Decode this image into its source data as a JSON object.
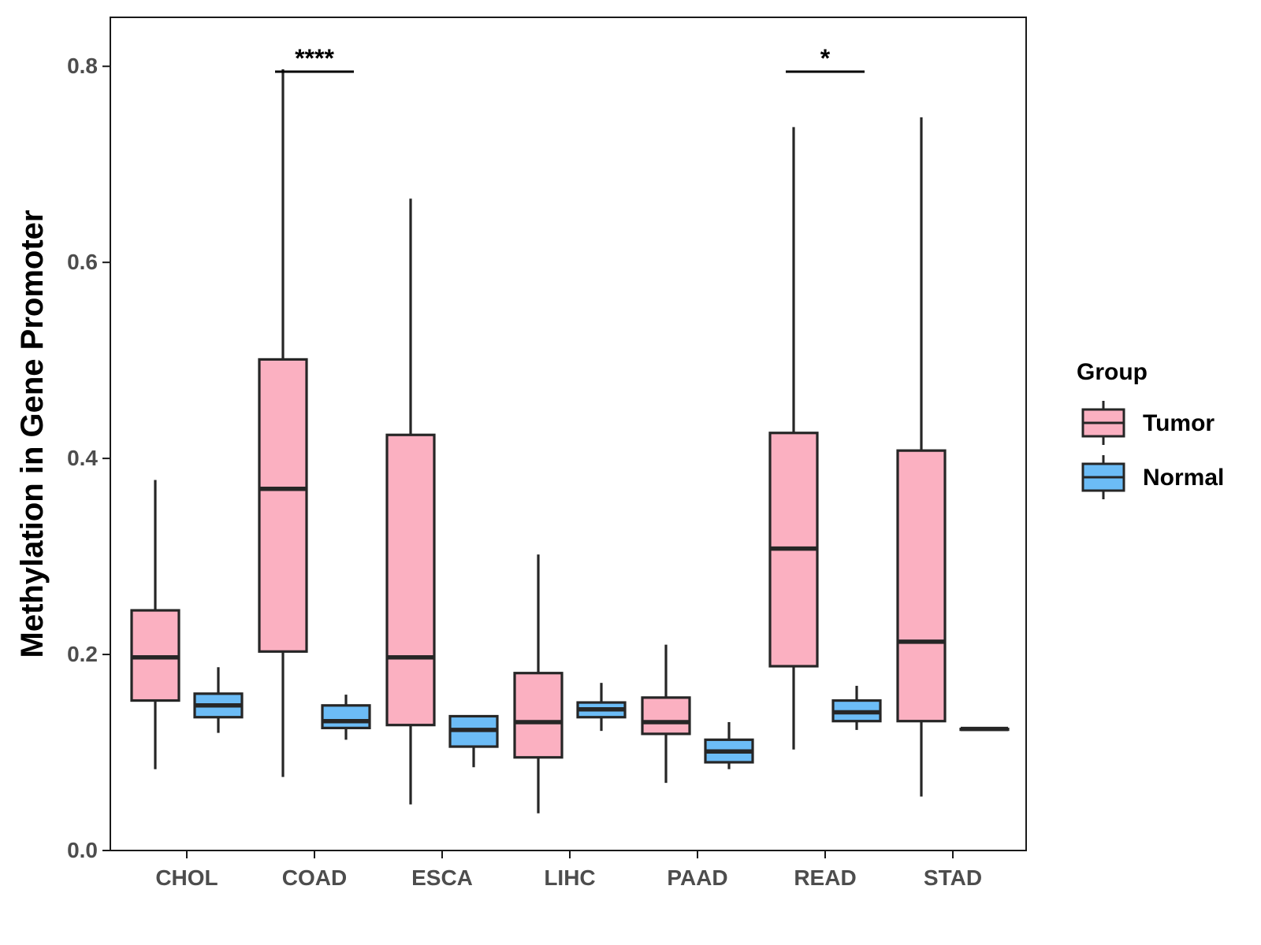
{
  "chart_data": {
    "type": "boxplot",
    "title": "",
    "xlabel": "",
    "ylabel": "Methylation in Gene Promoter",
    "ylim": [
      0,
      0.85
    ],
    "y_ticks": [
      "0.0",
      "0.2",
      "0.4",
      "0.6",
      "0.8"
    ],
    "y_tick_values": [
      0,
      0.2,
      0.4,
      0.6,
      0.8
    ],
    "categories": [
      "CHOL",
      "COAD",
      "ESCA",
      "LIHC",
      "PAAD",
      "READ",
      "STAD"
    ],
    "legend": {
      "title": "Group",
      "position": "right",
      "entries": [
        {
          "label": "Tumor",
          "color": "#fbb0c1"
        },
        {
          "label": "Normal",
          "color": "#6cbcf6"
        }
      ]
    },
    "series": [
      {
        "name": "Tumor",
        "color": "#fbb0c1",
        "boxes": [
          {
            "category": "CHOL",
            "min": 0.083,
            "q1": 0.153,
            "median": 0.197,
            "q3": 0.245,
            "max": 0.378
          },
          {
            "category": "COAD",
            "min": 0.075,
            "q1": 0.203,
            "median": 0.369,
            "q3": 0.501,
            "max": 0.797
          },
          {
            "category": "ESCA",
            "min": 0.047,
            "q1": 0.128,
            "median": 0.197,
            "q3": 0.424,
            "max": 0.665
          },
          {
            "category": "LIHC",
            "min": 0.038,
            "q1": 0.095,
            "median": 0.131,
            "q3": 0.181,
            "max": 0.302
          },
          {
            "category": "PAAD",
            "min": 0.069,
            "q1": 0.119,
            "median": 0.131,
            "q3": 0.156,
            "max": 0.21
          },
          {
            "category": "READ",
            "min": 0.103,
            "q1": 0.188,
            "median": 0.308,
            "q3": 0.426,
            "max": 0.738
          },
          {
            "category": "STAD",
            "min": 0.055,
            "q1": 0.132,
            "median": 0.213,
            "q3": 0.408,
            "max": 0.748
          }
        ]
      },
      {
        "name": "Normal",
        "color": "#6cbcf6",
        "boxes": [
          {
            "category": "CHOL",
            "min": 0.12,
            "q1": 0.136,
            "median": 0.148,
            "q3": 0.16,
            "max": 0.187
          },
          {
            "category": "COAD",
            "min": 0.113,
            "q1": 0.125,
            "median": 0.132,
            "q3": 0.148,
            "max": 0.159
          },
          {
            "category": "ESCA",
            "min": 0.085,
            "q1": 0.106,
            "median": 0.123,
            "q3": 0.137,
            "max": 0.138
          },
          {
            "category": "LIHC",
            "min": 0.122,
            "q1": 0.136,
            "median": 0.144,
            "q3": 0.151,
            "max": 0.171
          },
          {
            "category": "PAAD",
            "min": 0.083,
            "q1": 0.09,
            "median": 0.101,
            "q3": 0.113,
            "max": 0.131
          },
          {
            "category": "READ",
            "min": 0.123,
            "q1": 0.132,
            "median": 0.141,
            "q3": 0.153,
            "max": 0.168
          },
          {
            "category": "STAD",
            "min": 0.124,
            "q1": 0.124,
            "median": 0.124,
            "q3": 0.124,
            "max": 0.124
          }
        ]
      }
    ],
    "annotations": [
      {
        "category": "COAD",
        "label": "****",
        "y": 0.797
      },
      {
        "category": "READ",
        "label": "*",
        "y": 0.797
      }
    ]
  }
}
